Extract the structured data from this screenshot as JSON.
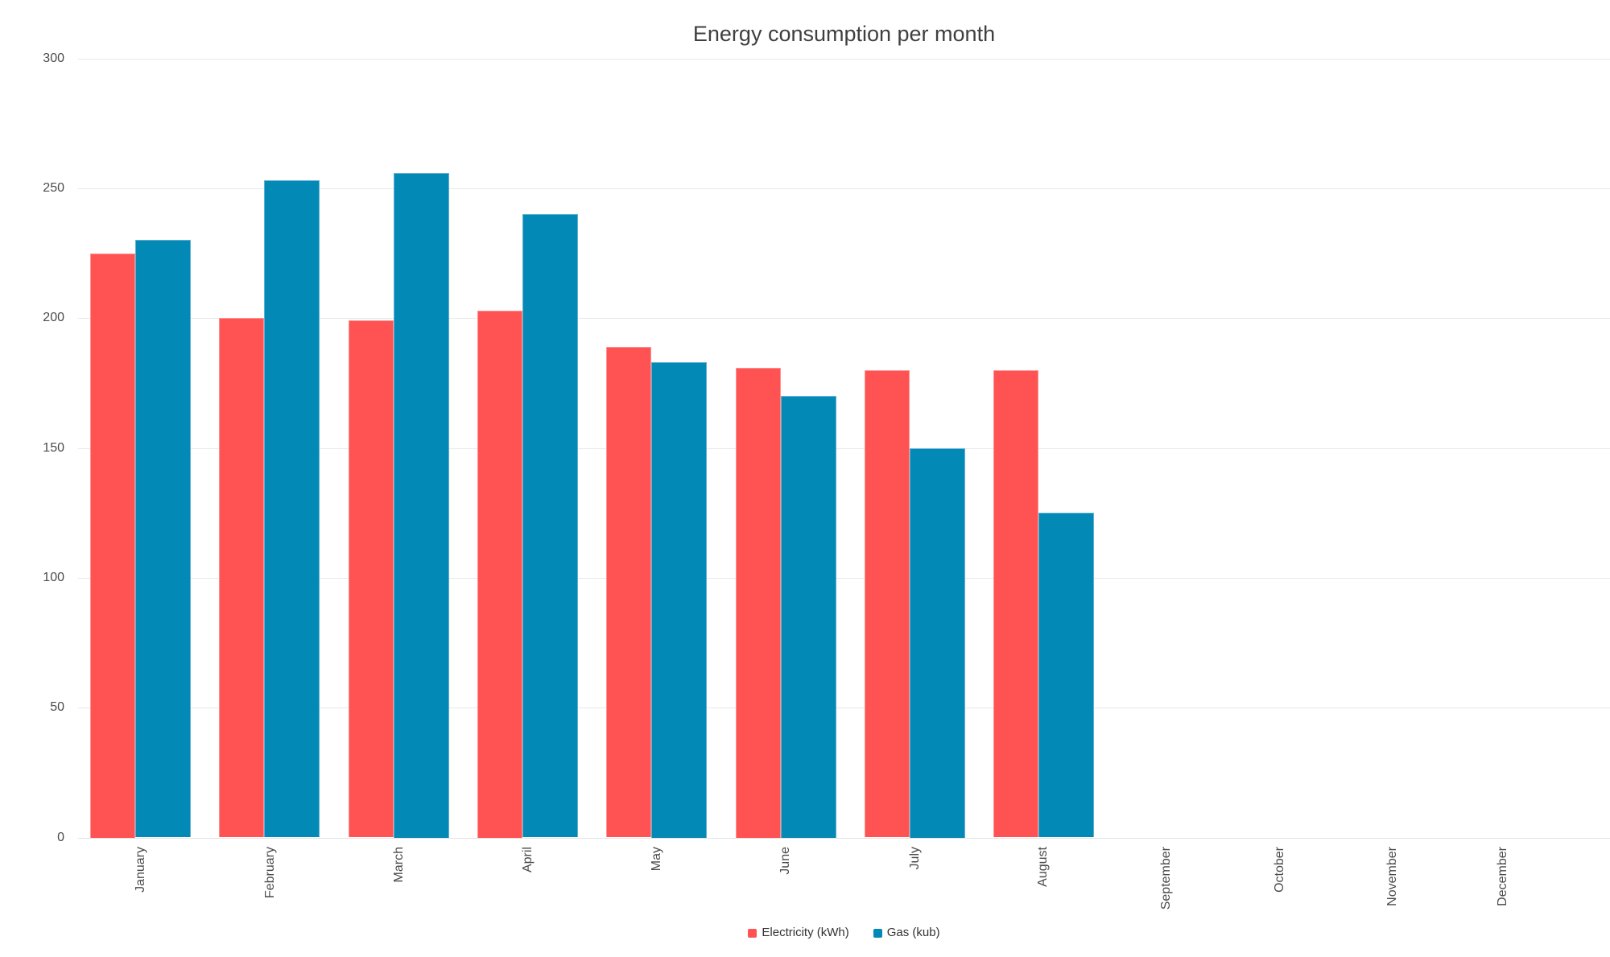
{
  "chart_data": {
    "type": "bar",
    "title": "Energy consumption per month",
    "categories": [
      "January",
      "February",
      "March",
      "April",
      "May",
      "June",
      "July",
      "August",
      "September",
      "October",
      "November",
      "December"
    ],
    "series": [
      {
        "name": "Electricity (kWh)",
        "color": "#ff5252",
        "values": [
          225,
          200,
          199,
          203,
          189,
          181,
          180,
          180,
          0,
          0,
          0,
          0
        ]
      },
      {
        "name": "Gas (kub)",
        "color": "#0289b5",
        "values": [
          230,
          253,
          256,
          240,
          183,
          170,
          150,
          125,
          0,
          0,
          0,
          0
        ]
      }
    ],
    "xlabel": "",
    "ylabel": "",
    "ylim": [
      0,
      300
    ],
    "yticks": [
      0,
      50,
      100,
      150,
      200,
      250,
      300
    ],
    "grid": true,
    "legend_position": "bottom",
    "x_label_rotation": "vertical-bottom-to-top"
  }
}
